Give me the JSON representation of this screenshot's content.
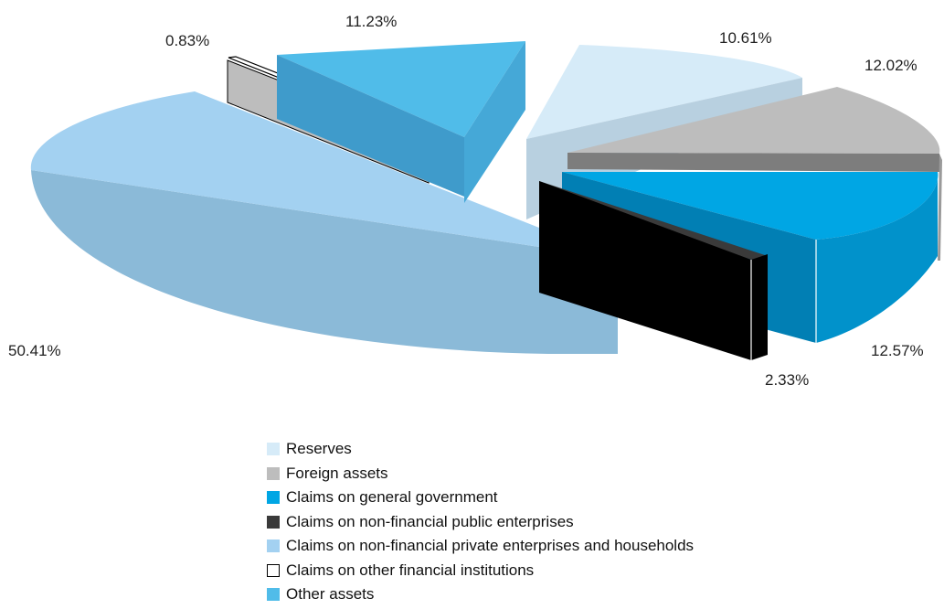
{
  "chart_data": {
    "type": "pie",
    "title": "",
    "categories": [
      "Reserves",
      "Foreign assets",
      "Claims on general government",
      "Claims on non-financial public enterprises",
      "Claims on non-financial private enterprises and households",
      "Claims on other financial institutions",
      "Other assets"
    ],
    "values": [
      10.61,
      12.02,
      12.57,
      2.33,
      50.41,
      0.83,
      11.23
    ],
    "labels": [
      "10.61%",
      "12.02%",
      "12.57%",
      "2.33%",
      "50.41%",
      "0.83%",
      "11.23%"
    ],
    "colors": [
      "#d6ebf8",
      "#bdbdbd",
      "#00a6e4",
      "#3a3a3a",
      "#a3d1f1",
      "#ffffff",
      "#50bce9"
    ],
    "legend_position": "bottom",
    "exploded": true,
    "three_d": true
  }
}
